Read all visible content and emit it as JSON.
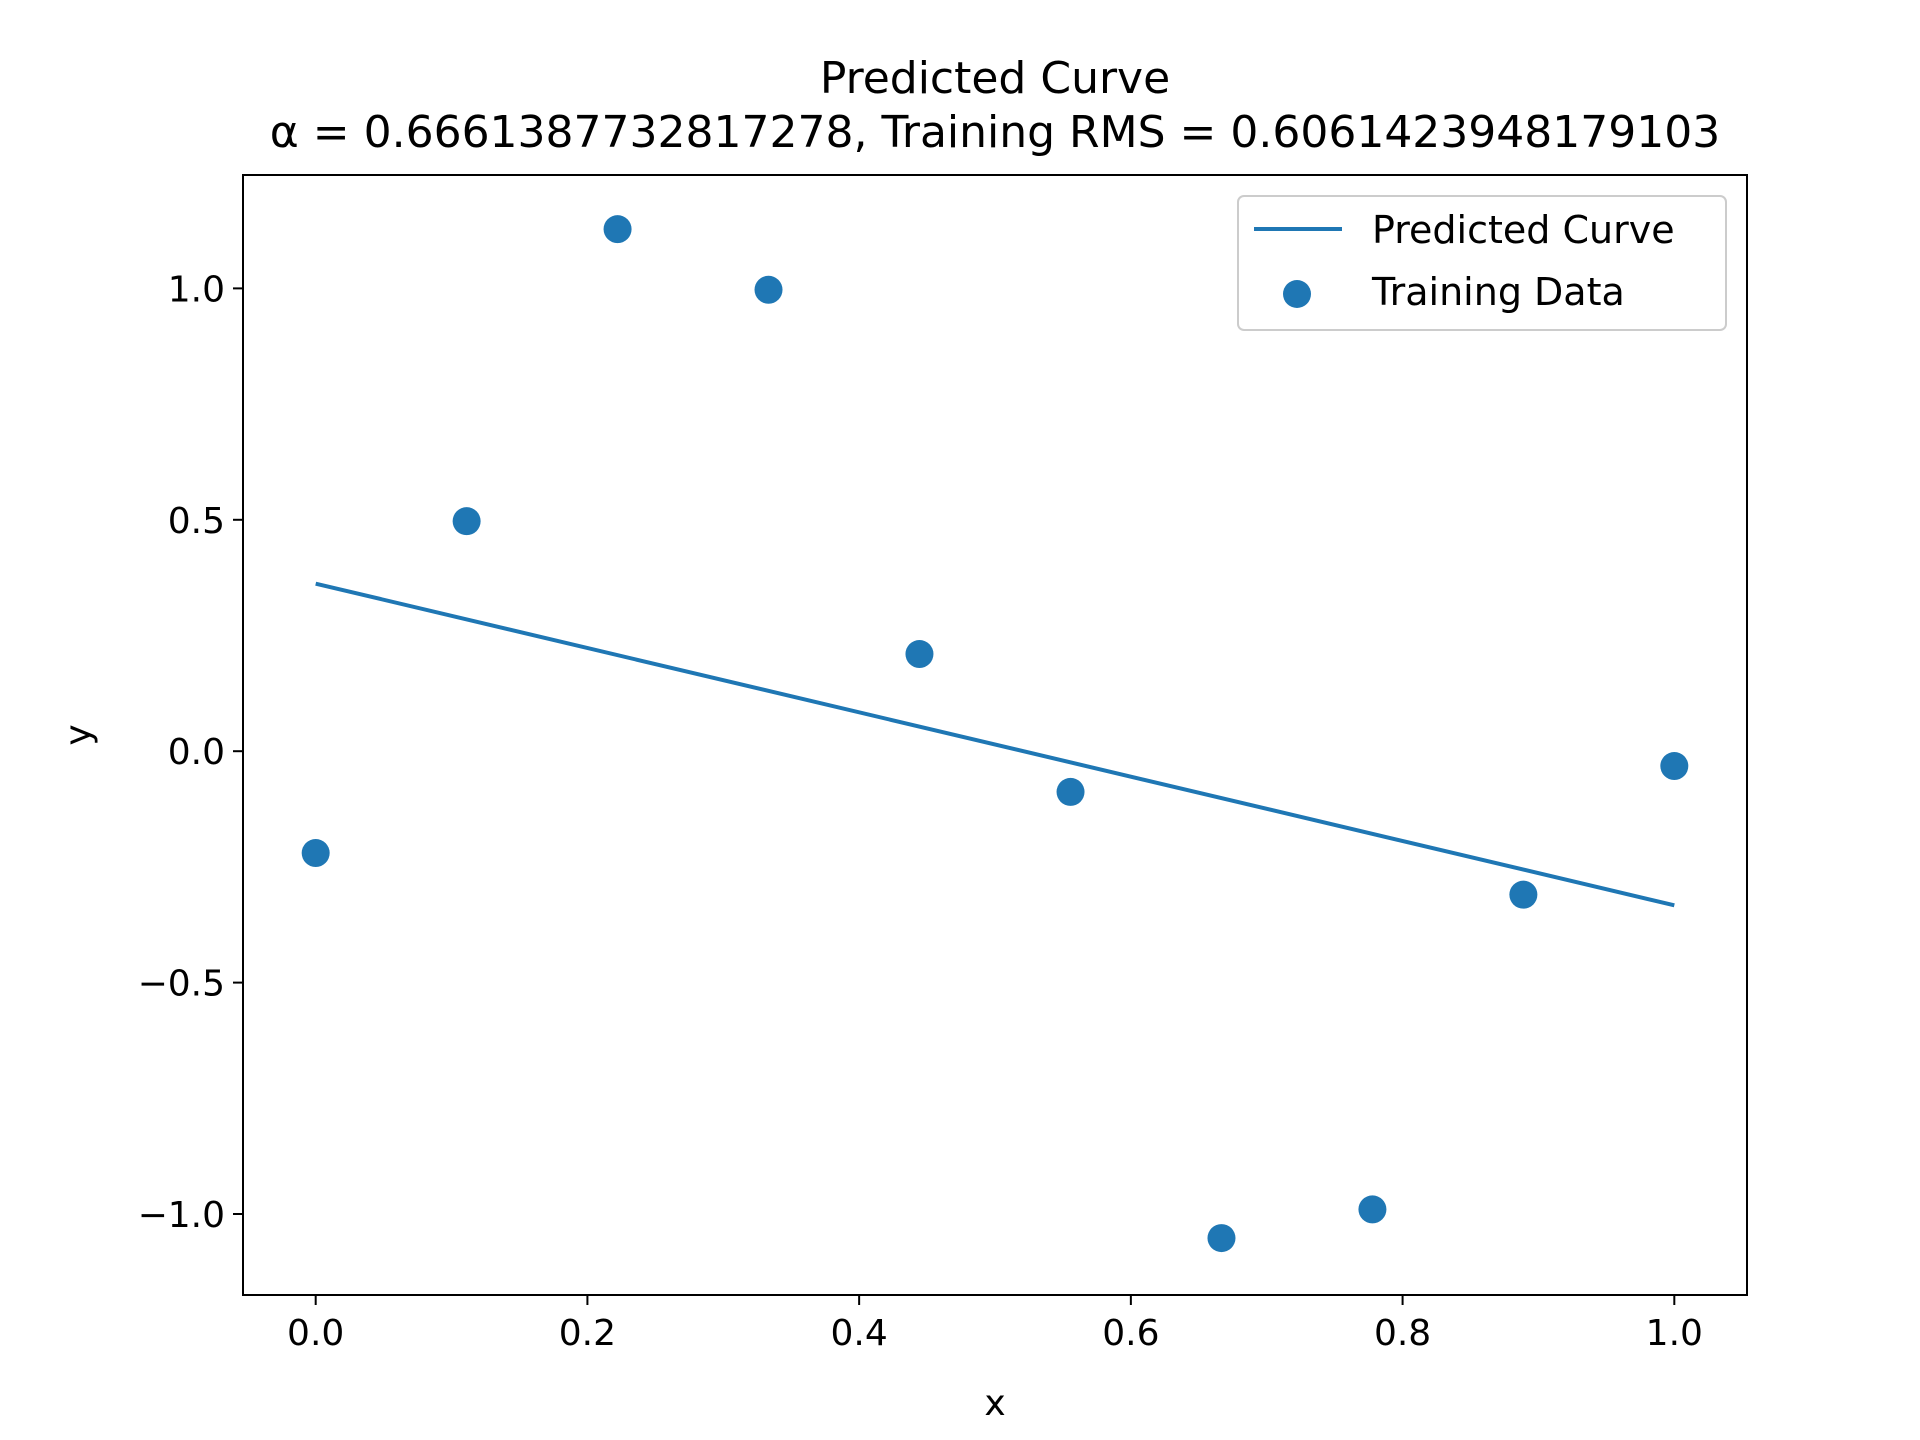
{
  "chart_data": {
    "type": "scatter",
    "title": "Predicted Curve",
    "subtitle": "α = 0.6661387732817278, Training RMS = 0.6061423948179103",
    "xlabel": "x",
    "ylabel": "y",
    "xlim": [
      -0.0535,
      1.0535
    ],
    "ylim": [
      -1.175,
      1.245
    ],
    "xticks": [
      0.0,
      0.2,
      0.4,
      0.6,
      0.8,
      1.0
    ],
    "xtick_labels": [
      "0.0",
      "0.2",
      "0.4",
      "0.6",
      "0.8",
      "1.0"
    ],
    "yticks": [
      -1.0,
      -0.5,
      0.0,
      0.5,
      1.0
    ],
    "ytick_labels": [
      "−1.0",
      "−0.5",
      "0.0",
      "0.5",
      "1.0"
    ],
    "grid": false,
    "legend_position": "top-right",
    "color": "#1f77b4",
    "series": [
      {
        "name": "Predicted Curve",
        "kind": "line",
        "x": [
          0.0,
          1.0
        ],
        "y": [
          0.362,
          -0.333
        ]
      },
      {
        "name": "Training Data",
        "kind": "scatter",
        "x": [
          0.0,
          0.1111,
          0.2222,
          0.3333,
          0.4444,
          0.5556,
          0.6667,
          0.7778,
          0.8889,
          1.0
        ],
        "y": [
          -0.22,
          0.497,
          1.128,
          0.997,
          0.21,
          -0.088,
          -1.052,
          -0.99,
          -0.31,
          -0.032
        ]
      }
    ]
  }
}
